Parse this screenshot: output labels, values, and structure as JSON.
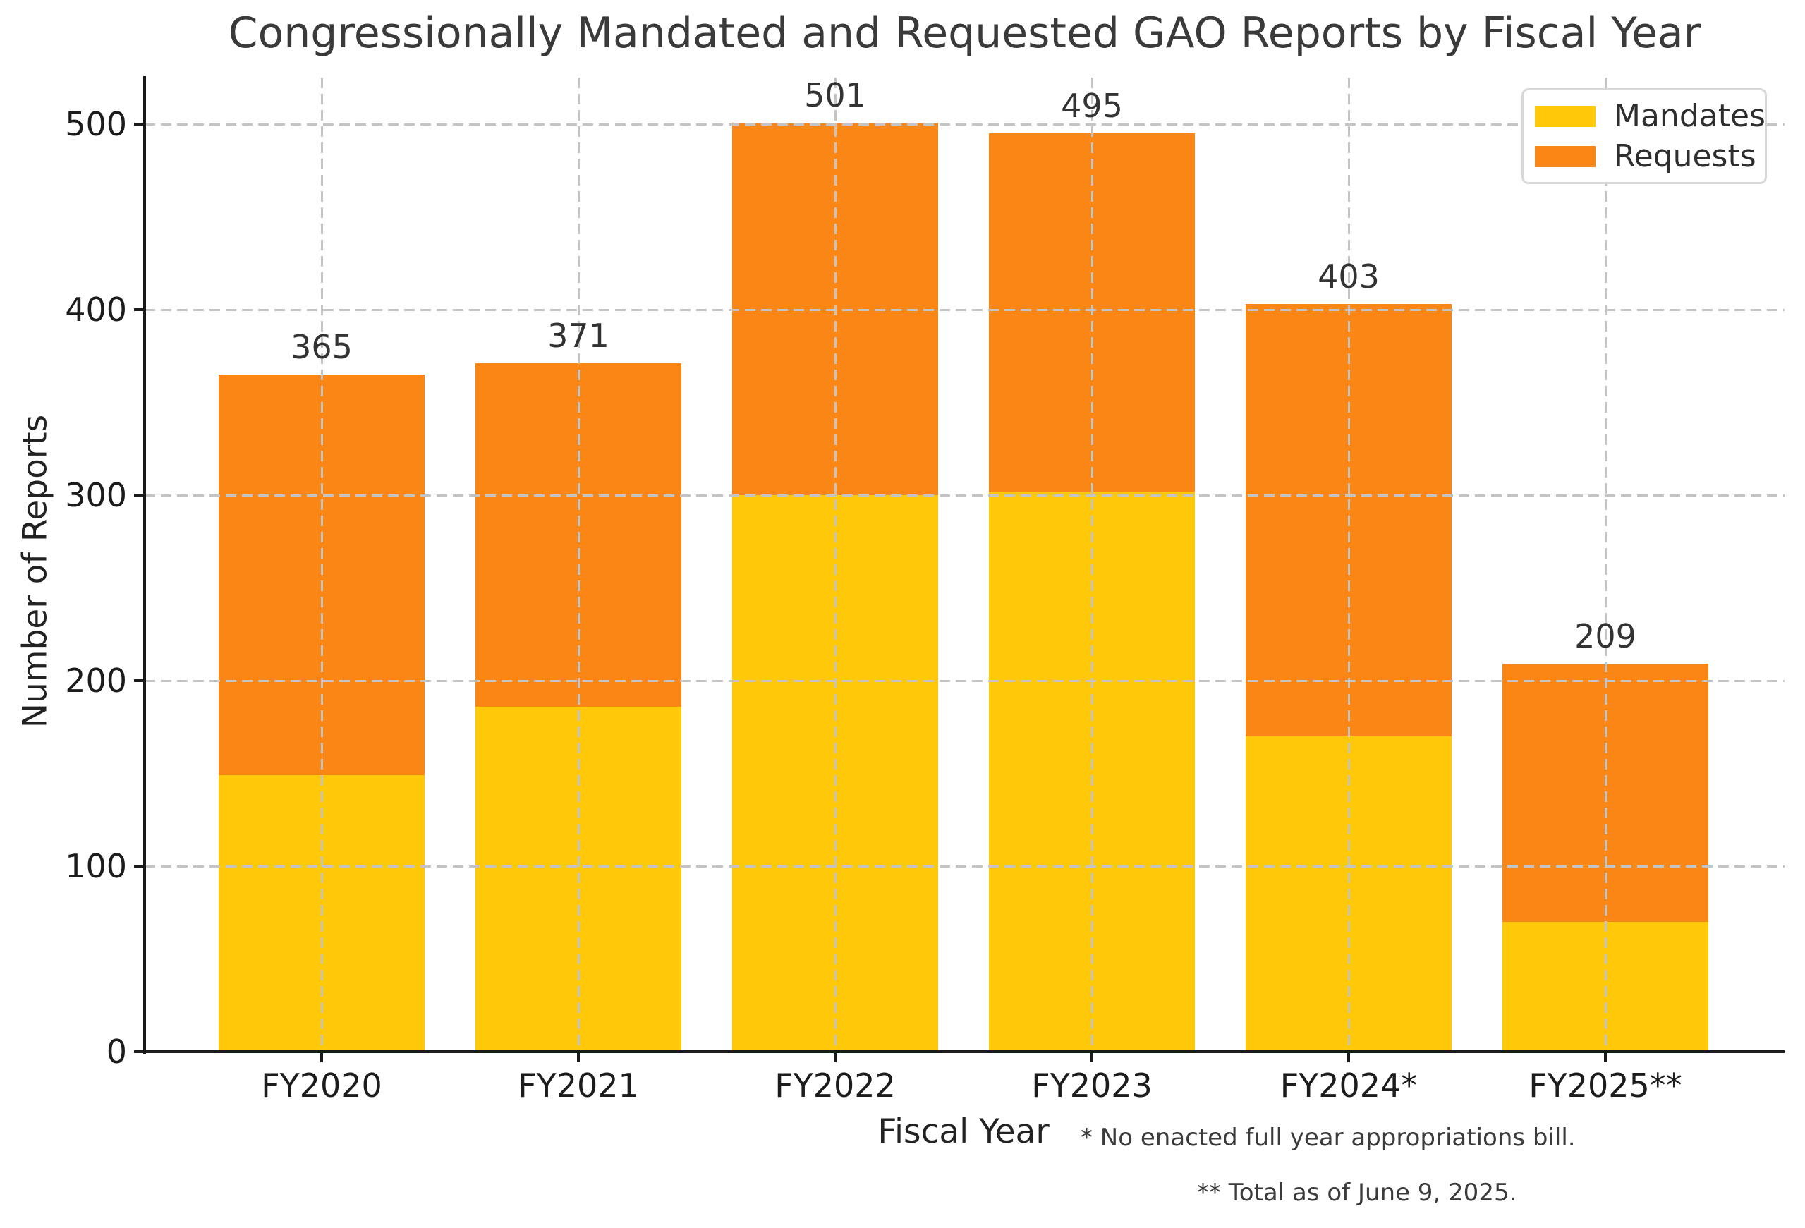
{
  "page": {
    "background": "#ffffff"
  },
  "chart_data": {
    "type": "bar",
    "stacked": true,
    "title": "Congressionally Mandated and Requested GAO Reports by Fiscal Year",
    "xlabel": "Fiscal Year",
    "ylabel": "Number of Reports",
    "categories": [
      "FY2020",
      "FY2021",
      "FY2022",
      "FY2023",
      "FY2024*",
      "FY2025**"
    ],
    "series": [
      {
        "name": "Mandates",
        "color": "#FFC90A",
        "values": [
          149,
          186,
          300,
          302,
          170,
          70
        ]
      },
      {
        "name": "Requests",
        "color": "#FA8616",
        "values": [
          216,
          185,
          201,
          193,
          233,
          139
        ]
      }
    ],
    "bar_total_labels": [
      "365",
      "371",
      "501",
      "495",
      "403",
      "209"
    ],
    "yticks": [
      0,
      100,
      200,
      300,
      400,
      500
    ],
    "ylim": [
      0,
      525
    ],
    "grid": {
      "style": "dashed",
      "color": "#c4c4c4",
      "axes": "both",
      "on_top": true
    },
    "legend": {
      "position": "upper-right"
    },
    "footnotes": [
      "* No enacted full year appropriations bill.",
      "** Total as of June 9, 2025."
    ],
    "text_color": "#3a3a3a",
    "spine_color": "#1a1a1a"
  }
}
